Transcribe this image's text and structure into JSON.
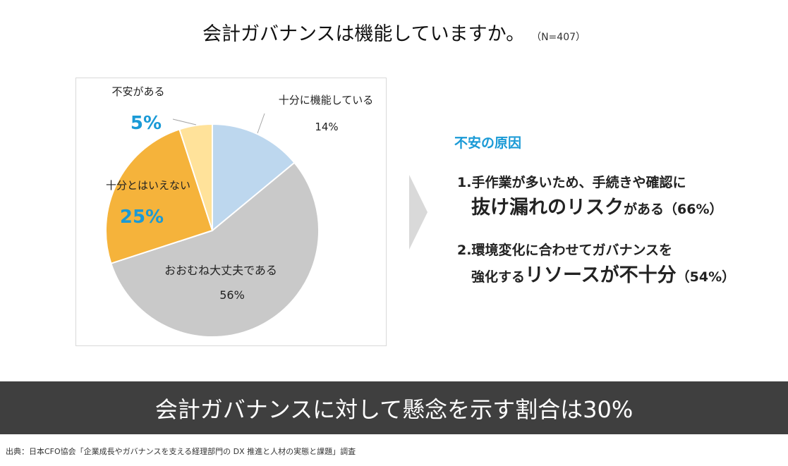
{
  "title": "会計ガバナンスは機能していますか。",
  "sample_size": "（N=407）",
  "chart_data": {
    "type": "pie",
    "slices": [
      {
        "label": "十分に機能している",
        "value": 14,
        "value_label": "14%",
        "color": "#bdd7ee"
      },
      {
        "label": "おおむね大丈夫である",
        "value": 56,
        "value_label": "56%",
        "color": "#c9c9c9"
      },
      {
        "label": "十分とはいえない",
        "value": 25,
        "value_label": "25%",
        "color": "#f5b33b"
      },
      {
        "label": "不安がある",
        "value": 5,
        "value_label": "5%",
        "color": "#ffe29a"
      }
    ],
    "highlight_color": "#1a9ad6"
  },
  "causes": {
    "title": "不安の原因",
    "item1": {
      "line1": "1.手作業が多いため、手続きや確認に",
      "emphasis": "抜け漏れのリスク",
      "tail": "がある（66%）"
    },
    "item2": {
      "line1": "2.環境変化に合わせてガバナンスを",
      "lead": "強化する",
      "emphasis": "リソースが不十分",
      "tail": "（54%）"
    }
  },
  "banner": "会計ガバナンスに対して懸念を示す割合は30%",
  "source": "出典：日本CFO協会「企業成長やガバナンスを支える経理部門の DX 推進と人材の実態と課題」調査"
}
